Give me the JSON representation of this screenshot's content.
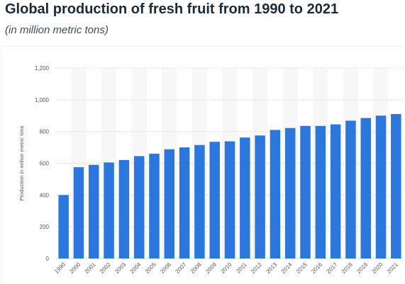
{
  "header": {
    "title": "Global production of fresh fruit from 1990 to 2021",
    "subtitle": "(in million metric tons)"
  },
  "colors": {
    "bar": "#2b77de",
    "grid": "#dcdcdc",
    "band": "#f7f7f7",
    "tick_text": "#555555"
  },
  "chart_data": {
    "type": "bar",
    "categories": [
      "1990",
      "2000",
      "2001",
      "2002",
      "2003",
      "2004",
      "2005",
      "2006",
      "2007",
      "2008",
      "2009",
      "2010",
      "2011",
      "2012",
      "2013",
      "2014",
      "2015",
      "2016",
      "2017",
      "2018",
      "2019",
      "2020",
      "2021"
    ],
    "values": [
      400,
      575,
      590,
      605,
      620,
      645,
      660,
      688,
      700,
      715,
      735,
      738,
      762,
      775,
      810,
      822,
      835,
      835,
      845,
      868,
      885,
      900,
      910
    ],
    "title": "Global production of fresh fruit from 1990 to 2021",
    "subtitle": "(in million metric tons)",
    "ylabel": "Production in million metric tons",
    "xlabel": "",
    "ylim": [
      0,
      1200
    ],
    "yticks": [
      0,
      200,
      400,
      600,
      800,
      1000,
      1200
    ],
    "ytick_labels": [
      "0",
      "200",
      "400",
      "600",
      "800",
      "1,000",
      "1,200"
    ],
    "grid": true,
    "legend": "none"
  }
}
